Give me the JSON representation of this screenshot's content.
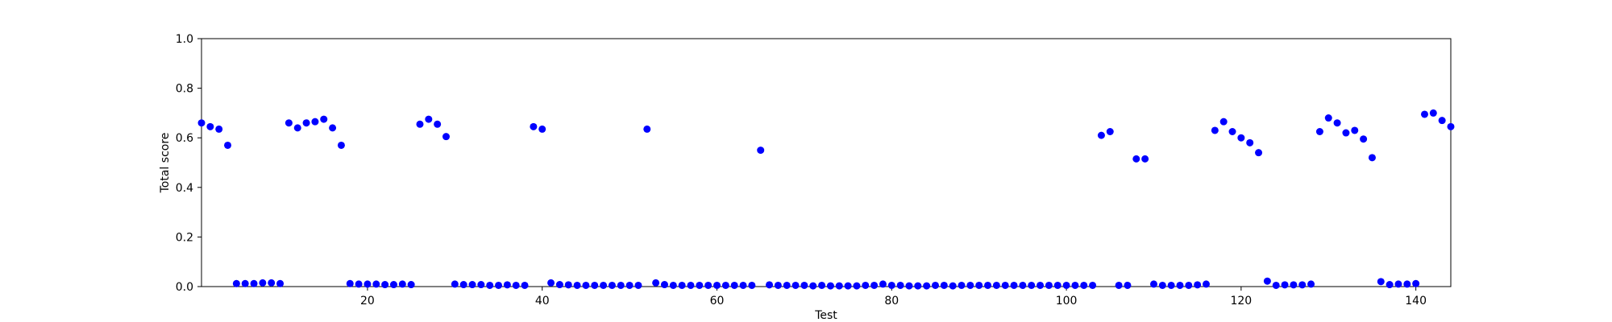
{
  "chart_data": {
    "type": "scatter",
    "title": "",
    "xlabel": "Test",
    "ylabel": "Total score",
    "xlim": [
      1,
      144
    ],
    "ylim": [
      0,
      1
    ],
    "xticks": [
      20,
      40,
      60,
      80,
      100,
      120,
      140
    ],
    "yticks": [
      0.0,
      0.2,
      0.4,
      0.6,
      0.8,
      1.0
    ],
    "xtick_labels": [
      "20",
      "40",
      "60",
      "80",
      "100",
      "120",
      "140"
    ],
    "ytick_labels": [
      "0.0",
      "0.2",
      "0.4",
      "0.6",
      "0.8",
      "1.0"
    ],
    "grid": false,
    "marker_color": "#0000ff",
    "series": [
      {
        "name": "Total score",
        "x": [
          1,
          2,
          3,
          4,
          5,
          6,
          7,
          8,
          9,
          10,
          11,
          12,
          13,
          14,
          15,
          16,
          17,
          18,
          19,
          20,
          21,
          22,
          23,
          24,
          25,
          26,
          27,
          28,
          29,
          30,
          31,
          32,
          33,
          34,
          35,
          36,
          37,
          38,
          39,
          40,
          41,
          42,
          43,
          44,
          45,
          46,
          47,
          48,
          49,
          50,
          51,
          52,
          53,
          54,
          55,
          56,
          57,
          58,
          59,
          60,
          61,
          62,
          63,
          64,
          65,
          66,
          67,
          68,
          69,
          70,
          71,
          72,
          73,
          74,
          75,
          76,
          77,
          78,
          79,
          80,
          81,
          82,
          83,
          84,
          85,
          86,
          87,
          88,
          89,
          90,
          91,
          92,
          93,
          94,
          95,
          96,
          97,
          98,
          99,
          100,
          101,
          102,
          103,
          104,
          105,
          106,
          107,
          108,
          109,
          110,
          111,
          112,
          113,
          114,
          115,
          116,
          117,
          118,
          119,
          120,
          121,
          122,
          123,
          124,
          125,
          126,
          127,
          128,
          129,
          130,
          131,
          132,
          133,
          134,
          135,
          136,
          137,
          138,
          139,
          140,
          141,
          142,
          143,
          144
        ],
        "y": [
          0.66,
          0.645,
          0.635,
          0.57,
          0.012,
          0.012,
          0.012,
          0.015,
          0.015,
          0.012,
          0.66,
          0.64,
          0.66,
          0.665,
          0.675,
          0.64,
          0.57,
          0.012,
          0.01,
          0.01,
          0.01,
          0.008,
          0.008,
          0.01,
          0.008,
          0.655,
          0.675,
          0.655,
          0.605,
          0.01,
          0.008,
          0.008,
          0.008,
          0.005,
          0.005,
          0.007,
          0.005,
          0.005,
          0.645,
          0.635,
          0.015,
          0.008,
          0.007,
          0.005,
          0.005,
          0.005,
          0.005,
          0.005,
          0.005,
          0.005,
          0.005,
          0.635,
          0.015,
          0.008,
          0.005,
          0.005,
          0.005,
          0.005,
          0.005,
          0.005,
          0.005,
          0.005,
          0.005,
          0.005,
          0.55,
          0.007,
          0.005,
          0.005,
          0.005,
          0.005,
          0.003,
          0.005,
          0.003,
          0.003,
          0.003,
          0.003,
          0.005,
          0.005,
          0.01,
          0.005,
          0.005,
          0.003,
          0.003,
          0.003,
          0.005,
          0.005,
          0.003,
          0.005,
          0.005,
          0.005,
          0.005,
          0.005,
          0.005,
          0.005,
          0.005,
          0.005,
          0.005,
          0.005,
          0.005,
          0.005,
          0.005,
          0.005,
          0.005,
          0.61,
          0.625,
          0.005,
          0.005,
          0.515,
          0.515,
          0.01,
          0.005,
          0.005,
          0.005,
          0.005,
          0.007,
          0.01,
          0.63,
          0.665,
          0.625,
          0.6,
          0.58,
          0.54,
          0.022,
          0.005,
          0.007,
          0.007,
          0.007,
          0.01,
          0.625,
          0.68,
          0.66,
          0.62,
          0.63,
          0.595,
          0.52,
          0.02,
          0.008,
          0.01,
          0.01,
          0.012,
          0.695,
          0.7,
          0.67,
          0.645
        ]
      }
    ]
  }
}
